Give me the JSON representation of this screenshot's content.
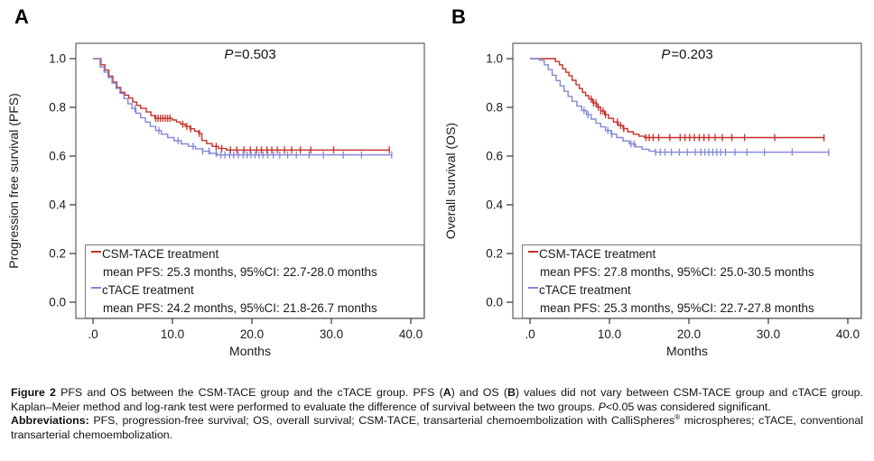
{
  "caption": {
    "segments": [
      {
        "t": "Figure 2 ",
        "b": true
      },
      {
        "t": "PFS and OS between the CSM-TACE group and the cTACE group. PFS ("
      },
      {
        "t": "A",
        "b": true
      },
      {
        "t": ") and OS ("
      },
      {
        "t": "B",
        "b": true
      },
      {
        "t": ") values did not vary between CSM-TACE group and cTACE group. Kaplan–Meier method and log-rank test were performed to evaluate the difference of survival between the two groups. "
      },
      {
        "t": "P",
        "i": true
      },
      {
        "t": "<0.05 was considered significant."
      }
    ]
  },
  "abbreviations": {
    "segments": [
      {
        "t": "Abbreviations: ",
        "b": true
      },
      {
        "t": "PFS, progression-free survival; OS, overall survival; CSM-TACE, transarterial chemoembolization with CalliSpheres"
      },
      {
        "t": "®",
        "sup": true
      },
      {
        "t": " microspheres; cTACE, conventional transarterial chemoembolization."
      }
    ]
  },
  "chart_data": [
    {
      "type": "line",
      "panel_label": "A",
      "p_label": {
        "var": "P",
        "value": "=0.503"
      },
      "xlabel": "Months",
      "ylabel": "Progression free survival (PFS)",
      "xtick_values": [
        0,
        10,
        20,
        30,
        40
      ],
      "xtick_labels": [
        ".0",
        "10.0",
        "20.0",
        "30.0",
        "40.0"
      ],
      "ytick_values": [
        0.0,
        0.2,
        0.4,
        0.6,
        0.8,
        1.0
      ],
      "ytick_labels": [
        "0.0",
        "0.2",
        "0.4",
        "0.6",
        "0.8",
        "1.0"
      ],
      "xlim": [
        -2.2,
        41.7
      ],
      "ylim": [
        -0.07,
        1.06
      ],
      "legend_position": "bottom-left",
      "series": [
        {
          "name": "CSM-TACE treatment",
          "stats": "mean PFS: 25.3 months, 95%CI: 22.7-28.0 months",
          "color": "#c62f28",
          "steps": [
            [
              0,
              1.0
            ],
            [
              1.0,
              0.975
            ],
            [
              1.5,
              0.953
            ],
            [
              2.0,
              0.928
            ],
            [
              2.5,
              0.904
            ],
            [
              3.0,
              0.882
            ],
            [
              3.5,
              0.862
            ],
            [
              4.0,
              0.85
            ],
            [
              4.5,
              0.838
            ],
            [
              5.0,
              0.822
            ],
            [
              5.5,
              0.808
            ],
            [
              6.0,
              0.796
            ],
            [
              6.7,
              0.781
            ],
            [
              7.3,
              0.766
            ],
            [
              7.8,
              0.755
            ],
            [
              10.0,
              0.748
            ],
            [
              10.5,
              0.74
            ],
            [
              11.0,
              0.731
            ],
            [
              11.6,
              0.722
            ],
            [
              12.2,
              0.712
            ],
            [
              12.8,
              0.702
            ],
            [
              13.3,
              0.693
            ],
            [
              13.7,
              0.664
            ],
            [
              14.3,
              0.651
            ],
            [
              15.0,
              0.64
            ],
            [
              15.8,
              0.631
            ],
            [
              16.8,
              0.625
            ],
            [
              37.3,
              0.625
            ]
          ],
          "censors": [
            7.9,
            8.2,
            8.5,
            8.8,
            9.1,
            9.4,
            9.7,
            11.3,
            11.8,
            12.3,
            13.4,
            15.5,
            16.2,
            17.3,
            18.1,
            19.0,
            19.8,
            20.6,
            21.2,
            21.9,
            22.5,
            23.2,
            24.1,
            25.0,
            26.1,
            27.4,
            30.3,
            37.3
          ]
        },
        {
          "name": "cTACE treatment",
          "stats": "mean PFS: 24.2 months, 95%CI: 21.8-26.7 months",
          "color": "#8288d8",
          "steps": [
            [
              0,
              1.0
            ],
            [
              0.9,
              0.966
            ],
            [
              1.4,
              0.945
            ],
            [
              1.9,
              0.922
            ],
            [
              2.4,
              0.9
            ],
            [
              2.9,
              0.878
            ],
            [
              3.4,
              0.857
            ],
            [
              3.9,
              0.836
            ],
            [
              4.4,
              0.815
            ],
            [
              4.9,
              0.795
            ],
            [
              5.4,
              0.776
            ],
            [
              6.0,
              0.757
            ],
            [
              6.6,
              0.739
            ],
            [
              7.2,
              0.722
            ],
            [
              7.9,
              0.705
            ],
            [
              8.6,
              0.69
            ],
            [
              9.4,
              0.676
            ],
            [
              10.2,
              0.663
            ],
            [
              11.1,
              0.65
            ],
            [
              12.0,
              0.64
            ],
            [
              12.9,
              0.63
            ],
            [
              13.8,
              0.62
            ],
            [
              14.7,
              0.611
            ],
            [
              15.6,
              0.605
            ],
            [
              37.6,
              0.605
            ]
          ],
          "censors": [
            5.3,
            8.3,
            10.7,
            12.6,
            13.8,
            14.6,
            15.5,
            16.1,
            16.6,
            17.2,
            17.7,
            18.3,
            18.9,
            19.4,
            19.9,
            20.4,
            20.9,
            21.4,
            22.0,
            22.7,
            23.5,
            24.5,
            25.6,
            27.2,
            29.0,
            31.5,
            33.8,
            37.6
          ]
        }
      ]
    },
    {
      "type": "line",
      "panel_label": "B",
      "p_label": {
        "var": "P",
        "value": "=0.203"
      },
      "xlabel": "Months",
      "ylabel": "Overall survival (OS)",
      "xtick_values": [
        0,
        10,
        20,
        30,
        40
      ],
      "xtick_labels": [
        ".0",
        "10.0",
        "20.0",
        "30.0",
        "40.0"
      ],
      "ytick_values": [
        0.0,
        0.2,
        0.4,
        0.6,
        0.8,
        1.0
      ],
      "ytick_labels": [
        "0.0",
        "0.2",
        "0.4",
        "0.6",
        "0.8",
        "1.0"
      ],
      "xlim": [
        -2.2,
        41.7
      ],
      "ylim": [
        -0.07,
        1.06
      ],
      "legend_position": "bottom-left",
      "series": [
        {
          "name": "CSM-TACE treatment",
          "stats": "mean PFS: 27.8 months, 95%CI: 25.0-30.5 months",
          "color": "#c62f28",
          "steps": [
            [
              0,
              1.0
            ],
            [
              3.2,
              0.988
            ],
            [
              3.7,
              0.975
            ],
            [
              4.1,
              0.958
            ],
            [
              4.5,
              0.944
            ],
            [
              4.9,
              0.93
            ],
            [
              5.3,
              0.911
            ],
            [
              5.8,
              0.893
            ],
            [
              6.2,
              0.877
            ],
            [
              6.6,
              0.862
            ],
            [
              7.0,
              0.848
            ],
            [
              7.4,
              0.834
            ],
            [
              7.9,
              0.818
            ],
            [
              8.4,
              0.801
            ],
            [
              8.9,
              0.785
            ],
            [
              9.4,
              0.77
            ],
            [
              9.9,
              0.755
            ],
            [
              10.5,
              0.74
            ],
            [
              11.1,
              0.726
            ],
            [
              11.7,
              0.713
            ],
            [
              12.3,
              0.7
            ],
            [
              13.0,
              0.69
            ],
            [
              13.7,
              0.682
            ],
            [
              14.4,
              0.676
            ],
            [
              37.0,
              0.675
            ]
          ],
          "censors": [
            7.7,
            8.0,
            8.3,
            8.6,
            8.9,
            9.2,
            9.5,
            11.0,
            11.4,
            11.8,
            14.6,
            15.0,
            15.5,
            16.2,
            17.6,
            18.9,
            19.5,
            20.1,
            20.7,
            21.3,
            21.9,
            22.5,
            23.3,
            24.2,
            25.4,
            27.0,
            30.8,
            37.0
          ]
        },
        {
          "name": "cTACE treatment",
          "stats": "mean PFS: 25.3 months, 95%CI: 22.7-27.8 months",
          "color": "#8288d8",
          "steps": [
            [
              0,
              1.0
            ],
            [
              1.2,
              0.993
            ],
            [
              1.8,
              0.975
            ],
            [
              2.3,
              0.955
            ],
            [
              2.8,
              0.932
            ],
            [
              3.3,
              0.91
            ],
            [
              3.8,
              0.888
            ],
            [
              4.3,
              0.866
            ],
            [
              4.8,
              0.845
            ],
            [
              5.3,
              0.825
            ],
            [
              5.9,
              0.805
            ],
            [
              6.5,
              0.787
            ],
            [
              7.1,
              0.77
            ],
            [
              7.7,
              0.752
            ],
            [
              8.3,
              0.735
            ],
            [
              8.9,
              0.72
            ],
            [
              9.5,
              0.705
            ],
            [
              10.2,
              0.69
            ],
            [
              10.9,
              0.676
            ],
            [
              11.7,
              0.662
            ],
            [
              12.5,
              0.65
            ],
            [
              13.3,
              0.638
            ],
            [
              14.1,
              0.628
            ],
            [
              15.0,
              0.62
            ],
            [
              15.8,
              0.616
            ],
            [
              37.6,
              0.615
            ]
          ],
          "censors": [
            6.8,
            7.3,
            9.8,
            10.3,
            12.7,
            13.1,
            15.8,
            16.4,
            17.0,
            17.8,
            18.8,
            19.8,
            20.8,
            21.5,
            22.0,
            22.5,
            23.0,
            23.5,
            24.0,
            24.6,
            25.8,
            27.3,
            29.5,
            33.0,
            37.6
          ]
        }
      ]
    }
  ]
}
